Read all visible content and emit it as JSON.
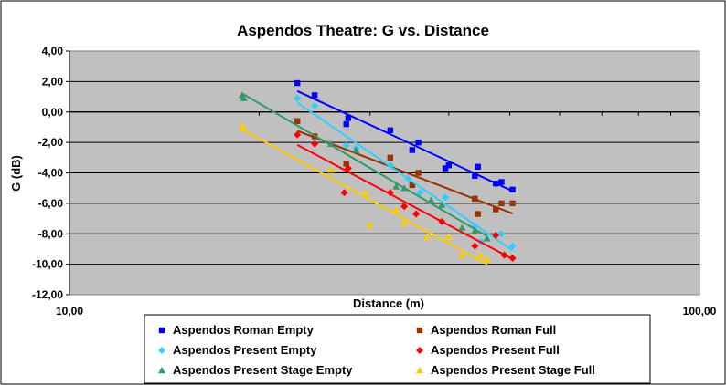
{
  "chart_data": {
    "type": "scatter",
    "title": "Aspendos Theatre: G vs. Distance",
    "xlabel": "Distance (m)",
    "ylabel": "G (dB)",
    "xscale": "log",
    "xlim": [
      10,
      100
    ],
    "ylim": [
      -12,
      4
    ],
    "x_ticks": [
      10,
      100
    ],
    "x_tick_labels": [
      "10,00",
      "100,00"
    ],
    "y_ticks": [
      4,
      2,
      0,
      -2,
      -4,
      -6,
      -8,
      -10,
      -12
    ],
    "y_tick_labels": [
      "4,00",
      "2,00",
      "0,00",
      "-2,00",
      "-4,00",
      "-6,00",
      "-8,00",
      "-10,00",
      "-12,00"
    ],
    "grid": "horizontal major lines",
    "plot_background": "#c0c0c0",
    "legend_position": "bottom",
    "series": [
      {
        "name": "Aspendos Roman Empty",
        "marker": "square",
        "color": "#0000ff",
        "trendline": "logarithmic",
        "points": [
          [
            23.0,
            1.9
          ],
          [
            24.5,
            1.1
          ],
          [
            27.5,
            -0.8
          ],
          [
            27.7,
            -0.4
          ],
          [
            32.3,
            -1.2
          ],
          [
            35.0,
            -2.5
          ],
          [
            35.8,
            -2.0
          ],
          [
            39.5,
            -3.7
          ],
          [
            40.0,
            -3.5
          ],
          [
            44.0,
            -4.2
          ],
          [
            44.5,
            -3.6
          ],
          [
            47.5,
            -4.7
          ],
          [
            48.5,
            -4.6
          ],
          [
            50.5,
            -5.1
          ]
        ]
      },
      {
        "name": "Aspendos Roman Full",
        "marker": "square",
        "color": "#993300",
        "trendline": "logarithmic",
        "points": [
          [
            23.0,
            -0.6
          ],
          [
            24.5,
            -1.6
          ],
          [
            27.5,
            -3.4
          ],
          [
            32.3,
            -3.0
          ],
          [
            35.0,
            -4.8
          ],
          [
            35.8,
            -4.0
          ],
          [
            44.0,
            -5.7
          ],
          [
            44.5,
            -6.7
          ],
          [
            47.5,
            -6.4
          ],
          [
            48.5,
            -6.0
          ],
          [
            50.5,
            -6.0
          ]
        ]
      },
      {
        "name": "Aspendos Present  Empty",
        "marker": "diamond",
        "color": "#33ccff",
        "trendline": "logarithmic",
        "points": [
          [
            23.0,
            0.9
          ],
          [
            24.5,
            0.4
          ],
          [
            27.5,
            -2.2
          ],
          [
            28.5,
            -2.4
          ],
          [
            32.3,
            -3.5
          ],
          [
            34.5,
            -4.4
          ],
          [
            36.0,
            -5.3
          ],
          [
            39.5,
            -5.6
          ],
          [
            44.0,
            -7.5
          ],
          [
            45.0,
            -8.5
          ],
          [
            48.5,
            -8.0
          ],
          [
            50.5,
            -8.8
          ]
        ]
      },
      {
        "name": "Aspendos Present  Full",
        "marker": "diamond",
        "color": "#ff0000",
        "trendline": "logarithmic",
        "points": [
          [
            23.0,
            -1.5
          ],
          [
            24.5,
            -2.1
          ],
          [
            27.3,
            -5.3
          ],
          [
            27.7,
            -3.7
          ],
          [
            32.3,
            -5.3
          ],
          [
            34.0,
            -6.2
          ],
          [
            35.5,
            -6.7
          ],
          [
            39.0,
            -7.2
          ],
          [
            44.0,
            -8.8
          ],
          [
            47.5,
            -8.1
          ],
          [
            49.0,
            -9.4
          ],
          [
            50.5,
            -9.6
          ]
        ]
      },
      {
        "name": "Aspendos Present Stage Empty",
        "marker": "triangle",
        "color": "#339966",
        "trendline": "logarithmic",
        "points": [
          [
            18.8,
            1.1
          ],
          [
            18.9,
            0.9
          ],
          [
            26.0,
            -2.1
          ],
          [
            28.5,
            -2.5
          ],
          [
            33.0,
            -4.9
          ],
          [
            34.0,
            -5.0
          ],
          [
            37.5,
            -5.8
          ],
          [
            39.0,
            -6.1
          ],
          [
            42.0,
            -7.6
          ],
          [
            44.0,
            -7.8
          ],
          [
            46.0,
            -8.3
          ]
        ]
      },
      {
        "name": "Aspendos Present  Stage Full",
        "marker": "triangle",
        "color": "#ffcc00",
        "trendline": "logarithmic",
        "points": [
          [
            18.8,
            -0.9
          ],
          [
            18.9,
            -1.1
          ],
          [
            26.0,
            -3.8
          ],
          [
            29.5,
            -5.3
          ],
          [
            30.0,
            -7.4
          ],
          [
            33.0,
            -6.4
          ],
          [
            34.0,
            -7.3
          ],
          [
            37.0,
            -8.2
          ],
          [
            40.0,
            -8.2
          ],
          [
            42.0,
            -9.4
          ],
          [
            45.0,
            -9.4
          ],
          [
            46.0,
            -9.7
          ]
        ]
      }
    ]
  }
}
